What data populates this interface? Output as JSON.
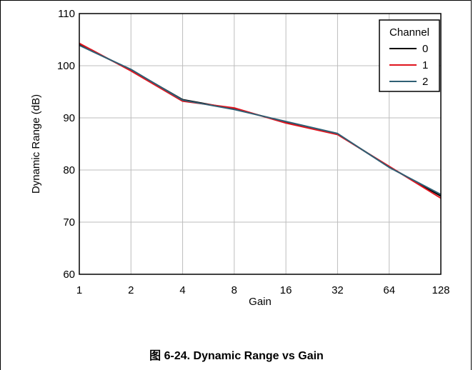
{
  "chart_data": {
    "type": "line",
    "xlabel": "Gain",
    "ylabel": "Dynamic Range (dB)",
    "x_scale": "log2",
    "x": [
      1,
      2,
      4,
      8,
      16,
      32,
      64,
      128
    ],
    "xticks": [
      "1",
      "2",
      "4",
      "8",
      "16",
      "32",
      "64",
      "128"
    ],
    "ylim": [
      60,
      110
    ],
    "yticks": [
      "60",
      "70",
      "80",
      "90",
      "100",
      "110"
    ],
    "grid": true,
    "legend": {
      "title": "Channel",
      "placement": "top-right"
    },
    "series": [
      {
        "name": "0",
        "color": "#000000",
        "values": [
          104.0,
          99.2,
          93.5,
          91.7,
          89.2,
          86.9,
          80.6,
          75.0
        ]
      },
      {
        "name": "1",
        "color": "#e0141e",
        "values": [
          104.3,
          99.0,
          93.2,
          91.9,
          89.0,
          86.8,
          80.7,
          74.6
        ]
      },
      {
        "name": "2",
        "color": "#2f5f74",
        "values": [
          103.9,
          99.3,
          93.4,
          91.6,
          89.3,
          87.0,
          80.5,
          75.3
        ]
      }
    ]
  },
  "caption": "图 6-24. Dynamic Range vs Gain"
}
